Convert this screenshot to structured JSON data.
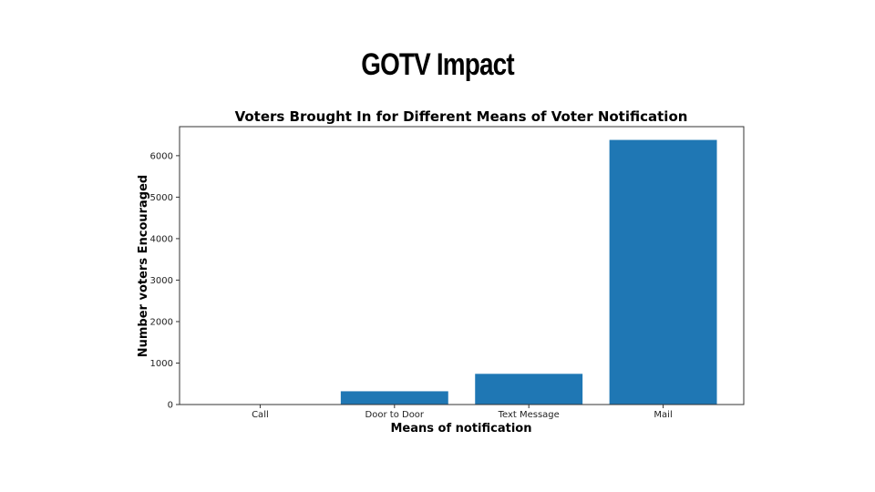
{
  "slide": {
    "title": "GOTV Impact"
  },
  "chart_data": {
    "type": "bar",
    "title": "Voters Brought In for Different Means of Voter Notification",
    "xlabel": "Means of notification",
    "ylabel": "Number voters Encouraged",
    "categories": [
      "Call",
      "Door to Door",
      "Text Message",
      "Mail"
    ],
    "values": [
      0,
      320,
      740,
      6380
    ],
    "ylim": [
      0,
      6700
    ],
    "yticks": [
      0,
      1000,
      2000,
      3000,
      4000,
      5000,
      6000
    ],
    "bar_color": "#1f77b4",
    "grid": false
  }
}
